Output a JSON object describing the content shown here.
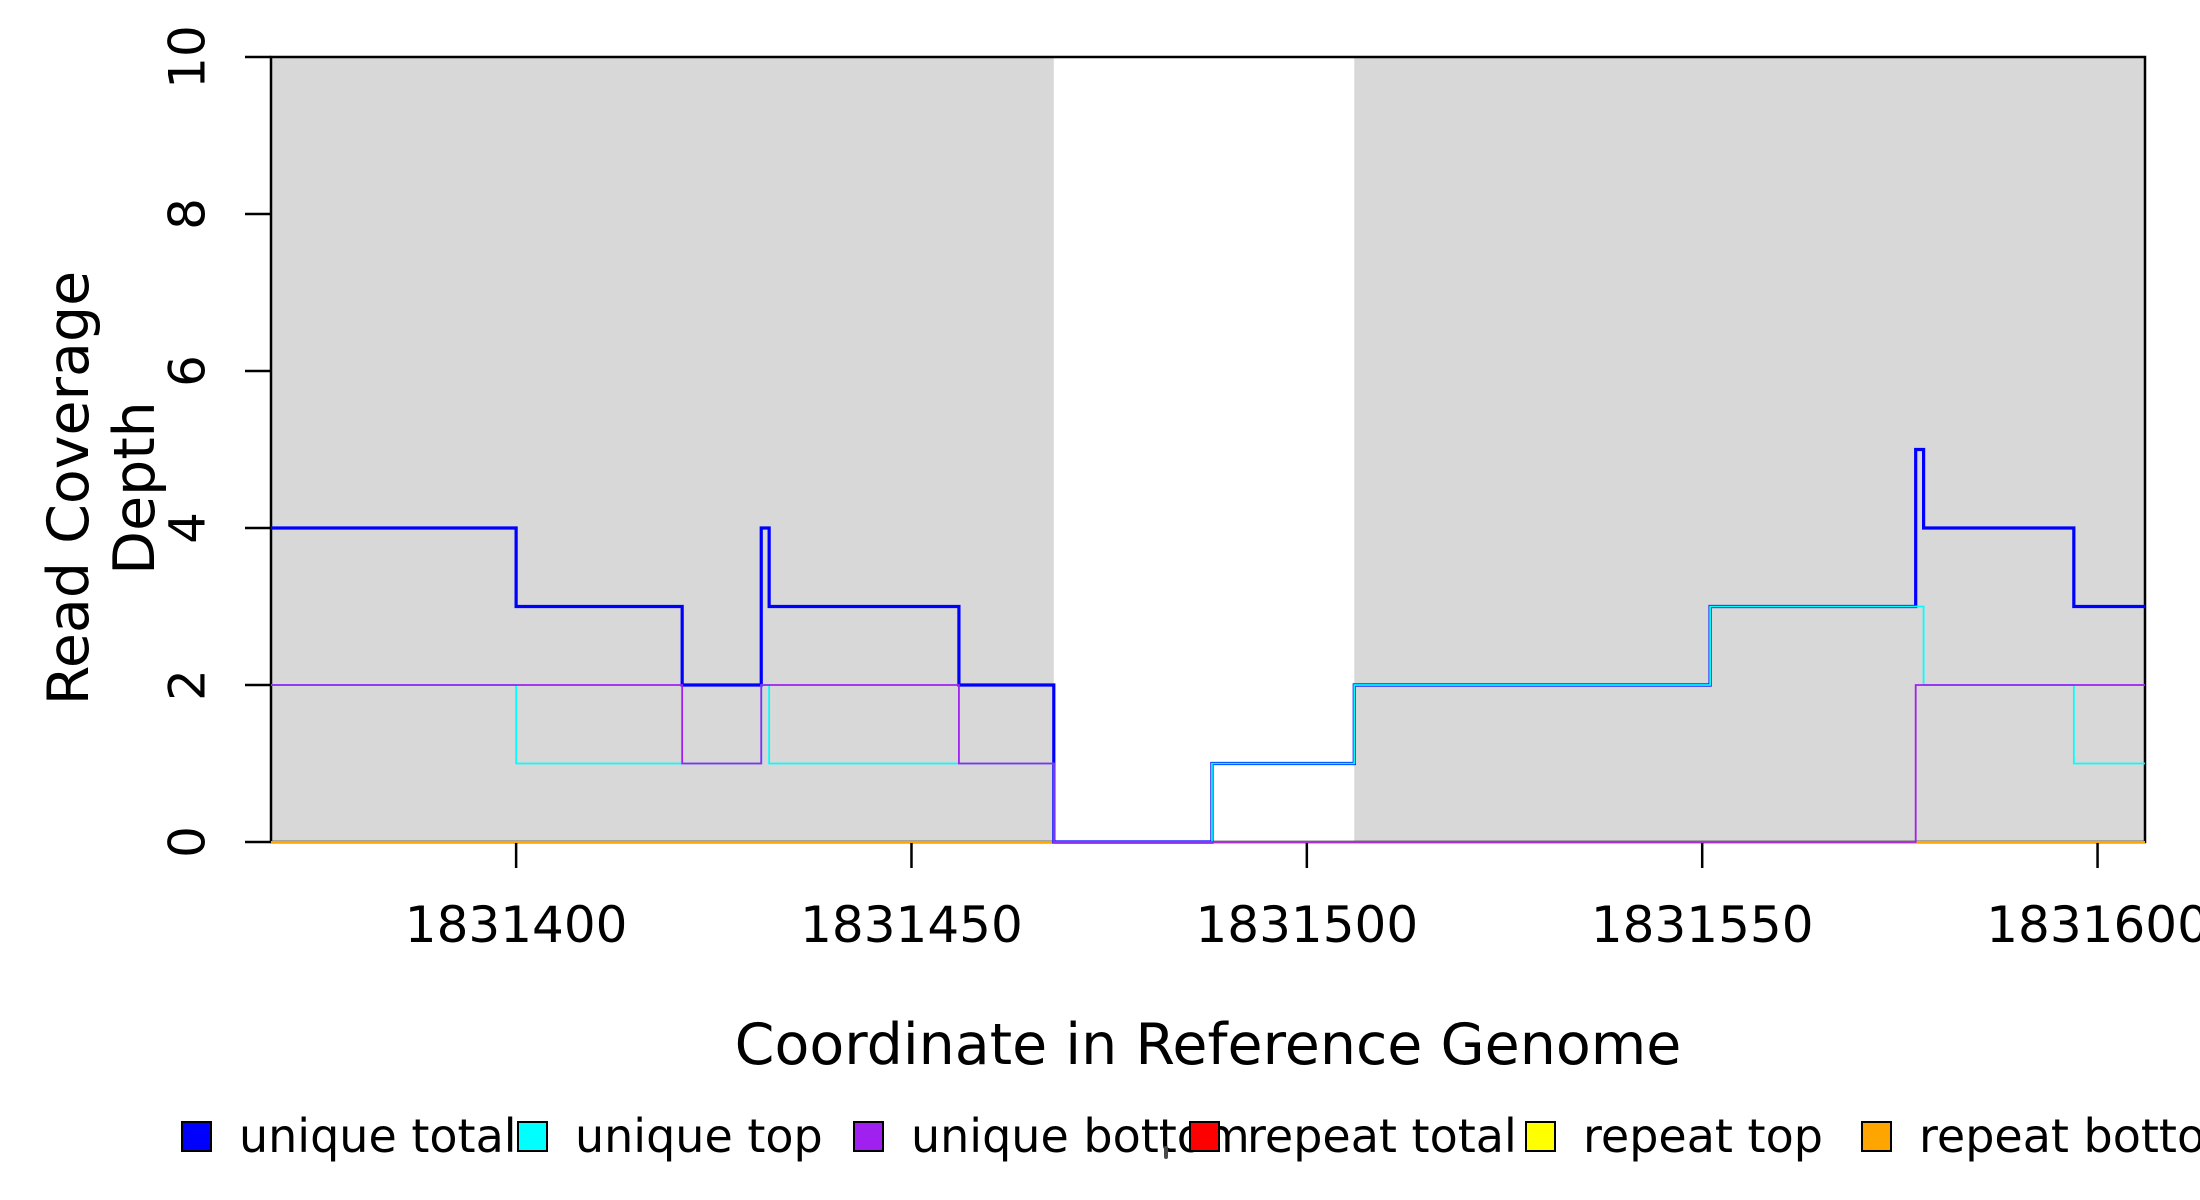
{
  "chart_data": {
    "type": "line",
    "subtype": "step",
    "title": "",
    "xlabel": "Coordinate in Reference Genome",
    "ylabel": "Read Coverage Depth",
    "xlim": [
      1831369,
      1831606
    ],
    "ylim": [
      0,
      10
    ],
    "xticks": [
      1831400,
      1831450,
      1831500,
      1831550,
      1831600
    ],
    "yticks": [
      0,
      2,
      4,
      6,
      8,
      10
    ],
    "grid": false,
    "background": "#ffffff",
    "shaded_regions": [
      {
        "name": "shaded-band-1",
        "x_start": 1831369,
        "x_end": 1831468,
        "color": "#D8D8D8"
      },
      {
        "name": "shaded-band-2",
        "x_start": 1831506,
        "x_end": 1831606,
        "color": "#D8D8D8"
      }
    ],
    "series": [
      {
        "name": "repeat total",
        "color": "#FF0000",
        "line_width": 2,
        "steps": [
          [
            1831369,
            0
          ],
          [
            1831606,
            0
          ]
        ]
      },
      {
        "name": "repeat top",
        "color": "#FFFF00",
        "line_width": 2,
        "steps": [
          [
            1831369,
            0
          ],
          [
            1831606,
            0
          ]
        ]
      },
      {
        "name": "repeat bottom",
        "color": "#FFA500",
        "line_width": 2,
        "steps": [
          [
            1831369,
            0
          ],
          [
            1831606,
            0
          ]
        ]
      },
      {
        "name": "unique total",
        "color": "#0000FF",
        "line_width": 3.2,
        "steps": [
          [
            1831369,
            4
          ],
          [
            1831400,
            3
          ],
          [
            1831421,
            2
          ],
          [
            1831431,
            4
          ],
          [
            1831432,
            3
          ],
          [
            1831456,
            2
          ],
          [
            1831468,
            0
          ],
          [
            1831488,
            1
          ],
          [
            1831506,
            2
          ],
          [
            1831551,
            3
          ],
          [
            1831577,
            5
          ],
          [
            1831578,
            4
          ],
          [
            1831597,
            3
          ],
          [
            1831606,
            3
          ]
        ]
      },
      {
        "name": "unique top",
        "color": "#00FFFF",
        "line_width": 1.8,
        "steps": [
          [
            1831369,
            2
          ],
          [
            1831400,
            1
          ],
          [
            1831431,
            2
          ],
          [
            1831432,
            1
          ],
          [
            1831468,
            0
          ],
          [
            1831488,
            1
          ],
          [
            1831506,
            2
          ],
          [
            1831551,
            3
          ],
          [
            1831578,
            2
          ],
          [
            1831597,
            1
          ],
          [
            1831606,
            1
          ]
        ]
      },
      {
        "name": "unique bottom",
        "color": "#A020F0",
        "line_width": 1.8,
        "steps": [
          [
            1831369,
            2
          ],
          [
            1831421,
            1
          ],
          [
            1831431,
            2
          ],
          [
            1831456,
            1
          ],
          [
            1831468,
            0
          ],
          [
            1831577,
            2
          ],
          [
            1831606,
            2
          ]
        ]
      }
    ],
    "legend": {
      "position": "bottom",
      "entries": [
        {
          "label": "unique total",
          "color": "#0000FF"
        },
        {
          "label": "unique top",
          "color": "#00FFFF"
        },
        {
          "label": "unique bottom",
          "color": "#A020F0"
        },
        {
          "label": "repeat total",
          "color": "#FF0000"
        },
        {
          "label": "repeat top",
          "color": "#FFFF00"
        },
        {
          "label": "repeat bottom",
          "color": "#FFA500"
        }
      ]
    }
  }
}
